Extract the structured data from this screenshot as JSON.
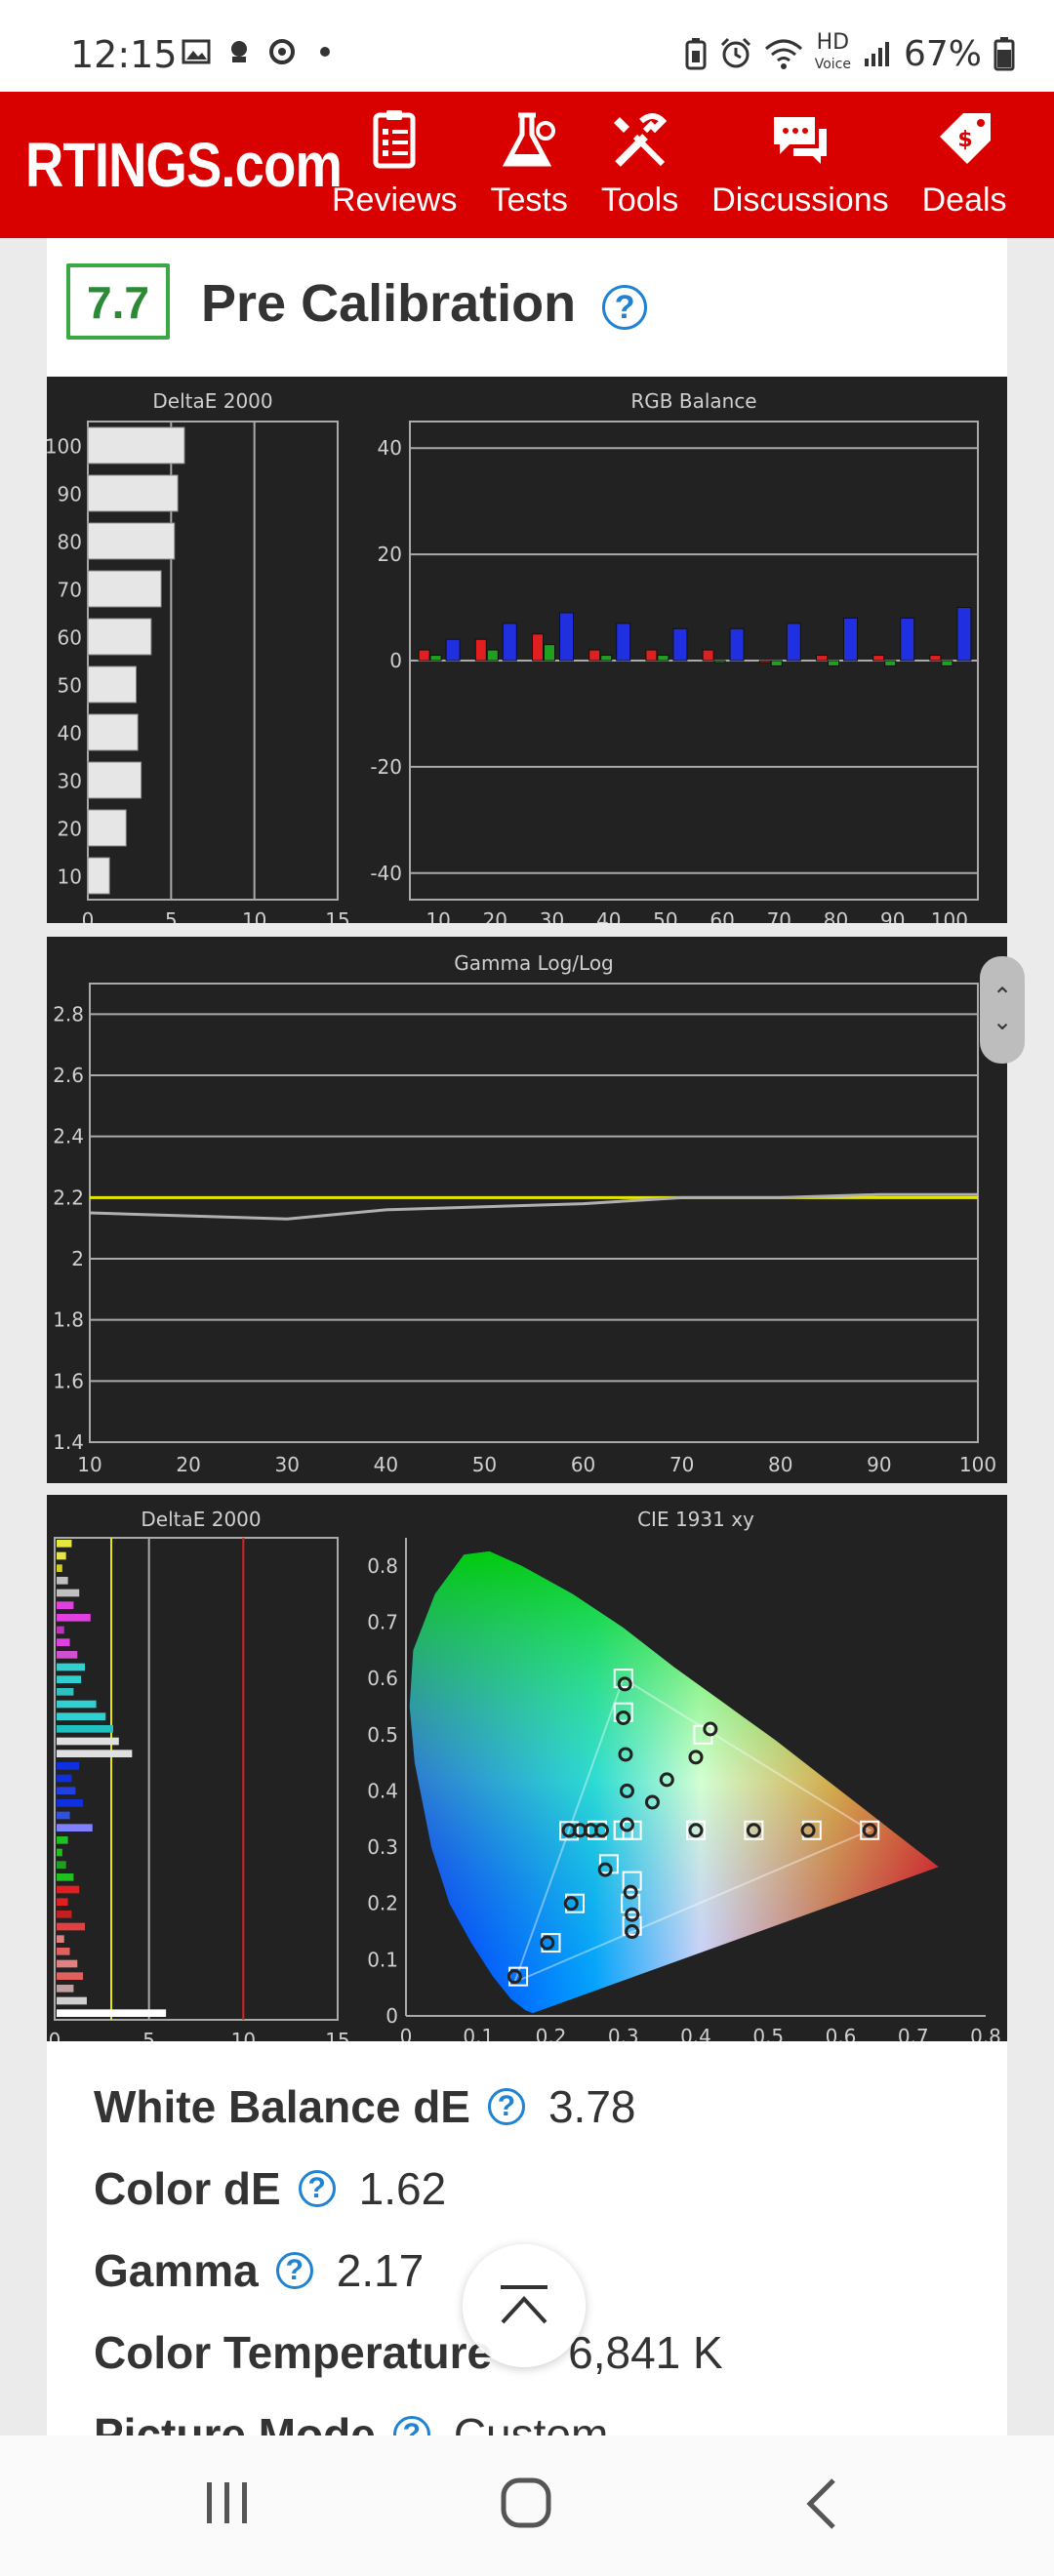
{
  "status_bar": {
    "time": "12:15",
    "battery": "67%",
    "network": "HD",
    "network_sub": "Voice"
  },
  "header": {
    "logo": "RTINGS.com",
    "nav": [
      {
        "label": "Reviews",
        "icon": "clipboard-checklist-icon"
      },
      {
        "label": "Tests",
        "icon": "flask-gear-icon"
      },
      {
        "label": "Tools",
        "icon": "tools-icon"
      },
      {
        "label": "Discussions",
        "icon": "chat-bubbles-icon"
      },
      {
        "label": "Deals",
        "icon": "price-tag-icon"
      }
    ],
    "brand_color": "#d90000"
  },
  "section": {
    "score": "7.7",
    "title": "Pre Calibration"
  },
  "chart_data": [
    {
      "type": "bar",
      "title": "DeltaE 2000",
      "orientation": "horizontal",
      "categories": [
        "100",
        "90",
        "80",
        "70",
        "60",
        "50",
        "40",
        "30",
        "20",
        "10"
      ],
      "values": [
        5.8,
        5.4,
        5.2,
        4.4,
        3.8,
        2.9,
        3.0,
        3.2,
        2.3,
        1.3
      ],
      "xlim": [
        0,
        15
      ],
      "xticks": [
        "0",
        "5",
        "10",
        "15"
      ]
    },
    {
      "type": "bar",
      "title": "RGB Balance",
      "categories": [
        "10",
        "20",
        "30",
        "40",
        "50",
        "60",
        "70",
        "80",
        "90",
        "100"
      ],
      "series": [
        {
          "color": "#e02020",
          "values": [
            2,
            4,
            5,
            2,
            2,
            2,
            0,
            1,
            1,
            1
          ]
        },
        {
          "color": "#20a020",
          "values": [
            1,
            2,
            3,
            1,
            1,
            0,
            -1,
            -1,
            -1,
            -1
          ]
        },
        {
          "color": "#2030e0",
          "values": [
            4,
            7,
            9,
            7,
            6,
            6,
            7,
            8,
            8,
            10
          ]
        }
      ],
      "ylim": [
        -45,
        45
      ],
      "yticks": [
        "40",
        "20",
        "0",
        "-20",
        "-40"
      ]
    },
    {
      "type": "line",
      "title": "Gamma Log/Log",
      "x": [
        10,
        20,
        30,
        40,
        50,
        60,
        70,
        80,
        90,
        100
      ],
      "series": [
        {
          "color": "#e6e600",
          "values": [
            2.2,
            2.2,
            2.2,
            2.2,
            2.2,
            2.2,
            2.2,
            2.2,
            2.2,
            2.2
          ]
        },
        {
          "color": "#b0b0b0",
          "values": [
            2.15,
            2.14,
            2.13,
            2.16,
            2.17,
            2.18,
            2.2,
            2.2,
            2.21,
            2.21
          ]
        }
      ],
      "xlim": [
        10,
        100
      ],
      "ylim": [
        1.4,
        2.9
      ],
      "yticks": [
        "2.8",
        "2.6",
        "2.4",
        "2.2",
        "2",
        "1.8",
        "1.6",
        "1.4"
      ],
      "xticks": [
        "10",
        "20",
        "30",
        "40",
        "50",
        "60",
        "70",
        "80",
        "90",
        "100"
      ]
    },
    {
      "type": "bar",
      "title": "DeltaE 2000",
      "orientation": "horizontal",
      "xlim": [
        0,
        15
      ],
      "xticks": [
        "0",
        "5",
        "10",
        "15"
      ],
      "values": [
        0.8,
        0.5,
        0.3,
        0.6,
        1.2,
        0.9,
        1.8,
        0.4,
        0.7,
        1.1,
        1.5,
        1.3,
        0.9,
        2.1,
        2.6,
        3.0,
        3.3,
        4.0,
        1.2,
        0.8,
        1.0,
        1.4,
        0.7,
        1.9,
        0.6,
        0.3,
        0.5,
        0.9,
        1.2,
        0.6,
        0.8,
        1.5,
        0.4,
        0.7,
        1.1,
        1.4,
        0.9,
        1.6,
        5.8
      ],
      "colors": [
        "#e6e640",
        "#e6e640",
        "#d0d020",
        "#c0c0c0",
        "#c0c0c0",
        "#e040e0",
        "#e040e0",
        "#c030c0",
        "#e040e0",
        "#d050d0",
        "#30d0d0",
        "#30d0d0",
        "#30c0c0",
        "#30d0d0",
        "#30d0d0",
        "#20c0c0",
        "#e0e0e0",
        "#e0e0e0",
        "#1030e0",
        "#1030e0",
        "#2040e0",
        "#1030e0",
        "#3050e0",
        "#8080ff",
        "#20c020",
        "#20c020",
        "#20a020",
        "#20c020",
        "#e02020",
        "#e02020",
        "#c02020",
        "#e04040",
        "#e08080",
        "#e06060",
        "#e08080",
        "#e06060",
        "#c0a0a0",
        "#d0d0d0",
        "#ffffff"
      ],
      "reference_lines": [
        {
          "x": 3,
          "color": "#e6e600"
        },
        {
          "x": 10,
          "color": "#e02020"
        }
      ]
    },
    {
      "type": "scatter",
      "title": "CIE 1931 xy",
      "xlim": [
        0,
        0.8
      ],
      "ylim": [
        0,
        0.85
      ],
      "xticks": [
        "0",
        "0.1",
        "0.2",
        "0.3",
        "0.4",
        "0.5",
        "0.6",
        "0.7",
        "0.8"
      ],
      "yticks": [
        "0.8",
        "0.7",
        "0.6",
        "0.5",
        "0.4",
        "0.3",
        "0.2",
        "0.1",
        "0"
      ],
      "targets": [
        [
          0.3,
          0.6
        ],
        [
          0.3,
          0.54
        ],
        [
          0.3,
          0.33
        ],
        [
          0.4,
          0.33
        ],
        [
          0.48,
          0.33
        ],
        [
          0.56,
          0.33
        ],
        [
          0.64,
          0.33
        ],
        [
          0.225,
          0.329
        ],
        [
          0.264,
          0.33
        ],
        [
          0.3,
          0.33
        ],
        [
          0.28,
          0.27
        ],
        [
          0.233,
          0.2
        ],
        [
          0.2,
          0.13
        ],
        [
          0.155,
          0.07
        ],
        [
          0.31,
          0.2
        ],
        [
          0.312,
          0.33
        ],
        [
          0.312,
          0.24
        ],
        [
          0.312,
          0.16
        ],
        [
          0.41,
          0.5
        ]
      ],
      "measured": [
        [
          0.302,
          0.59
        ],
        [
          0.3,
          0.53
        ],
        [
          0.303,
          0.465
        ],
        [
          0.305,
          0.4
        ],
        [
          0.305,
          0.34
        ],
        [
          0.4,
          0.33
        ],
        [
          0.48,
          0.33
        ],
        [
          0.555,
          0.33
        ],
        [
          0.64,
          0.33
        ],
        [
          0.27,
          0.33
        ],
        [
          0.255,
          0.33
        ],
        [
          0.24,
          0.33
        ],
        [
          0.225,
          0.33
        ],
        [
          0.275,
          0.26
        ],
        [
          0.228,
          0.2
        ],
        [
          0.195,
          0.13
        ],
        [
          0.15,
          0.07
        ],
        [
          0.31,
          0.22
        ],
        [
          0.312,
          0.18
        ],
        [
          0.312,
          0.15
        ],
        [
          0.42,
          0.51
        ],
        [
          0.4,
          0.46
        ],
        [
          0.36,
          0.42
        ],
        [
          0.34,
          0.38
        ]
      ]
    }
  ],
  "stats": [
    {
      "label": "White Balance dE",
      "value": "3.78"
    },
    {
      "label": "Color dE",
      "value": "1.62"
    },
    {
      "label": "Gamma",
      "value": "2.17"
    },
    {
      "label": "Color Temperature",
      "value": "6,841 K"
    },
    {
      "label": "Picture Mode",
      "value": "Custom"
    }
  ],
  "help_glyph": "?",
  "scroll_arrows": {
    "up": "⌃",
    "down": "⌄"
  }
}
